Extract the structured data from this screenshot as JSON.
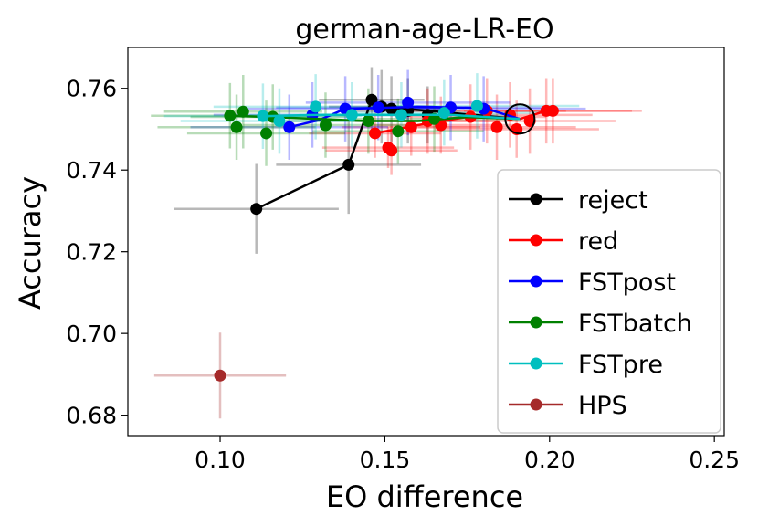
{
  "chart_data": {
    "type": "scatter",
    "title": "german-age-LR-EO",
    "xlabel": "EO difference",
    "ylabel": "Accuracy",
    "xlim": [
      0.072,
      0.253
    ],
    "ylim": [
      0.675,
      0.77
    ],
    "xticks": [
      0.1,
      0.15,
      0.2,
      0.25
    ],
    "yticks": [
      0.68,
      0.7,
      0.72,
      0.74,
      0.76
    ],
    "xtick_labels": [
      "0.10",
      "0.15",
      "0.20",
      "0.25"
    ],
    "ytick_labels": [
      "0.68",
      "0.70",
      "0.72",
      "0.74",
      "0.76"
    ],
    "legend_position": "lower right",
    "highlight_point": {
      "x": 0.191,
      "y": 0.7525
    },
    "series": [
      {
        "name": "reject",
        "color": "#000000",
        "line": [
          [
            0.111,
            0.7305
          ],
          [
            0.139,
            0.7413
          ],
          [
            0.146,
            0.7572
          ],
          [
            0.149,
            0.7555
          ],
          [
            0.191,
            0.7525
          ]
        ],
        "points": [
          {
            "x": 0.111,
            "y": 0.7305,
            "xerr": 0.025,
            "yerr": 0.011
          },
          {
            "x": 0.139,
            "y": 0.7413,
            "xerr": 0.022,
            "yerr": 0.012
          },
          {
            "x": 0.146,
            "y": 0.7572,
            "xerr": 0.016,
            "yerr": 0.008
          },
          {
            "x": 0.149,
            "y": 0.7555,
            "xerr": 0.016,
            "yerr": 0.009
          },
          {
            "x": 0.152,
            "y": 0.755,
            "xerr": 0.015,
            "yerr": 0.008
          },
          {
            "x": 0.157,
            "y": 0.7545,
            "xerr": 0.016,
            "yerr": 0.008
          },
          {
            "x": 0.163,
            "y": 0.7535,
            "xerr": 0.017,
            "yerr": 0.007
          }
        ]
      },
      {
        "name": "red",
        "color": "#ff0000",
        "line": [
          [
            0.147,
            0.749
          ],
          [
            0.16,
            0.751
          ],
          [
            0.175,
            0.753
          ],
          [
            0.191,
            0.7525
          ],
          [
            0.199,
            0.7545
          ]
        ],
        "points": [
          {
            "x": 0.147,
            "y": 0.749,
            "xerr": 0.02,
            "yerr": 0.006
          },
          {
            "x": 0.151,
            "y": 0.7455,
            "xerr": 0.02,
            "yerr": 0.005
          },
          {
            "x": 0.152,
            "y": 0.7448,
            "xerr": 0.02,
            "yerr": 0.006
          },
          {
            "x": 0.158,
            "y": 0.7505,
            "xerr": 0.021,
            "yerr": 0.007
          },
          {
            "x": 0.163,
            "y": 0.752,
            "xerr": 0.022,
            "yerr": 0.008
          },
          {
            "x": 0.167,
            "y": 0.751,
            "xerr": 0.022,
            "yerr": 0.007
          },
          {
            "x": 0.176,
            "y": 0.753,
            "xerr": 0.023,
            "yerr": 0.008
          },
          {
            "x": 0.181,
            "y": 0.7545,
            "xerr": 0.024,
            "yerr": 0.008
          },
          {
            "x": 0.184,
            "y": 0.7505,
            "xerr": 0.024,
            "yerr": 0.008
          },
          {
            "x": 0.188,
            "y": 0.7535,
            "xerr": 0.025,
            "yerr": 0.008
          },
          {
            "x": 0.19,
            "y": 0.75,
            "xerr": 0.025,
            "yerr": 0.007
          },
          {
            "x": 0.194,
            "y": 0.752,
            "xerr": 0.026,
            "yerr": 0.008
          },
          {
            "x": 0.199,
            "y": 0.7545,
            "xerr": 0.026,
            "yerr": 0.008
          },
          {
            "x": 0.201,
            "y": 0.7545,
            "xerr": 0.027,
            "yerr": 0.008
          }
        ]
      },
      {
        "name": "FSTpost",
        "color": "#0000ff",
        "line": [
          [
            0.121,
            0.7505
          ],
          [
            0.13,
            0.7522
          ],
          [
            0.138,
            0.755
          ],
          [
            0.148,
            0.7552
          ],
          [
            0.16,
            0.7555
          ],
          [
            0.18,
            0.7552
          ],
          [
            0.191,
            0.7525
          ]
        ],
        "points": [
          {
            "x": 0.121,
            "y": 0.7505,
            "xerr": 0.03,
            "yerr": 0.008
          },
          {
            "x": 0.128,
            "y": 0.7535,
            "xerr": 0.03,
            "yerr": 0.008
          },
          {
            "x": 0.138,
            "y": 0.755,
            "xerr": 0.03,
            "yerr": 0.008
          },
          {
            "x": 0.148,
            "y": 0.7553,
            "xerr": 0.031,
            "yerr": 0.008
          },
          {
            "x": 0.157,
            "y": 0.7565,
            "xerr": 0.031,
            "yerr": 0.008
          },
          {
            "x": 0.17,
            "y": 0.7553,
            "xerr": 0.031,
            "yerr": 0.008
          },
          {
            "x": 0.18,
            "y": 0.755,
            "xerr": 0.031,
            "yerr": 0.008
          }
        ]
      },
      {
        "name": "FSTbatch",
        "color": "#008000",
        "line": [
          [
            0.103,
            0.7533
          ],
          [
            0.115,
            0.753
          ],
          [
            0.13,
            0.7525
          ],
          [
            0.145,
            0.752
          ],
          [
            0.16,
            0.752
          ],
          [
            0.175,
            0.753
          ],
          [
            0.191,
            0.7525
          ]
        ],
        "points": [
          {
            "x": 0.103,
            "y": 0.7533,
            "xerr": 0.024,
            "yerr": 0.008
          },
          {
            "x": 0.105,
            "y": 0.7505,
            "xerr": 0.024,
            "yerr": 0.008
          },
          {
            "x": 0.107,
            "y": 0.7543,
            "xerr": 0.024,
            "yerr": 0.009
          },
          {
            "x": 0.114,
            "y": 0.749,
            "xerr": 0.024,
            "yerr": 0.008
          },
          {
            "x": 0.116,
            "y": 0.753,
            "xerr": 0.025,
            "yerr": 0.008
          },
          {
            "x": 0.132,
            "y": 0.751,
            "xerr": 0.025,
            "yerr": 0.008
          },
          {
            "x": 0.145,
            "y": 0.752,
            "xerr": 0.025,
            "yerr": 0.008
          },
          {
            "x": 0.154,
            "y": 0.7495,
            "xerr": 0.026,
            "yerr": 0.008
          },
          {
            "x": 0.165,
            "y": 0.7525,
            "xerr": 0.026,
            "yerr": 0.008
          }
        ]
      },
      {
        "name": "FSTpre",
        "color": "#00bfbf",
        "line": [
          [
            0.113,
            0.7532
          ],
          [
            0.13,
            0.7535
          ],
          [
            0.15,
            0.7535
          ],
          [
            0.17,
            0.7535
          ],
          [
            0.191,
            0.7525
          ]
        ],
        "points": [
          {
            "x": 0.113,
            "y": 0.7532,
            "xerr": 0.03,
            "yerr": 0.008
          },
          {
            "x": 0.118,
            "y": 0.752,
            "xerr": 0.03,
            "yerr": 0.008
          },
          {
            "x": 0.129,
            "y": 0.7555,
            "xerr": 0.031,
            "yerr": 0.008
          },
          {
            "x": 0.14,
            "y": 0.7535,
            "xerr": 0.031,
            "yerr": 0.008
          },
          {
            "x": 0.155,
            "y": 0.7535,
            "xerr": 0.031,
            "yerr": 0.008
          },
          {
            "x": 0.168,
            "y": 0.754,
            "xerr": 0.031,
            "yerr": 0.008
          },
          {
            "x": 0.178,
            "y": 0.7557,
            "xerr": 0.031,
            "yerr": 0.008
          }
        ]
      },
      {
        "name": "HPS",
        "color": "#a52a2a",
        "line": [],
        "points": [
          {
            "x": 0.1,
            "y": 0.6897,
            "xerr": 0.02,
            "yerr": 0.0105
          }
        ]
      }
    ]
  }
}
